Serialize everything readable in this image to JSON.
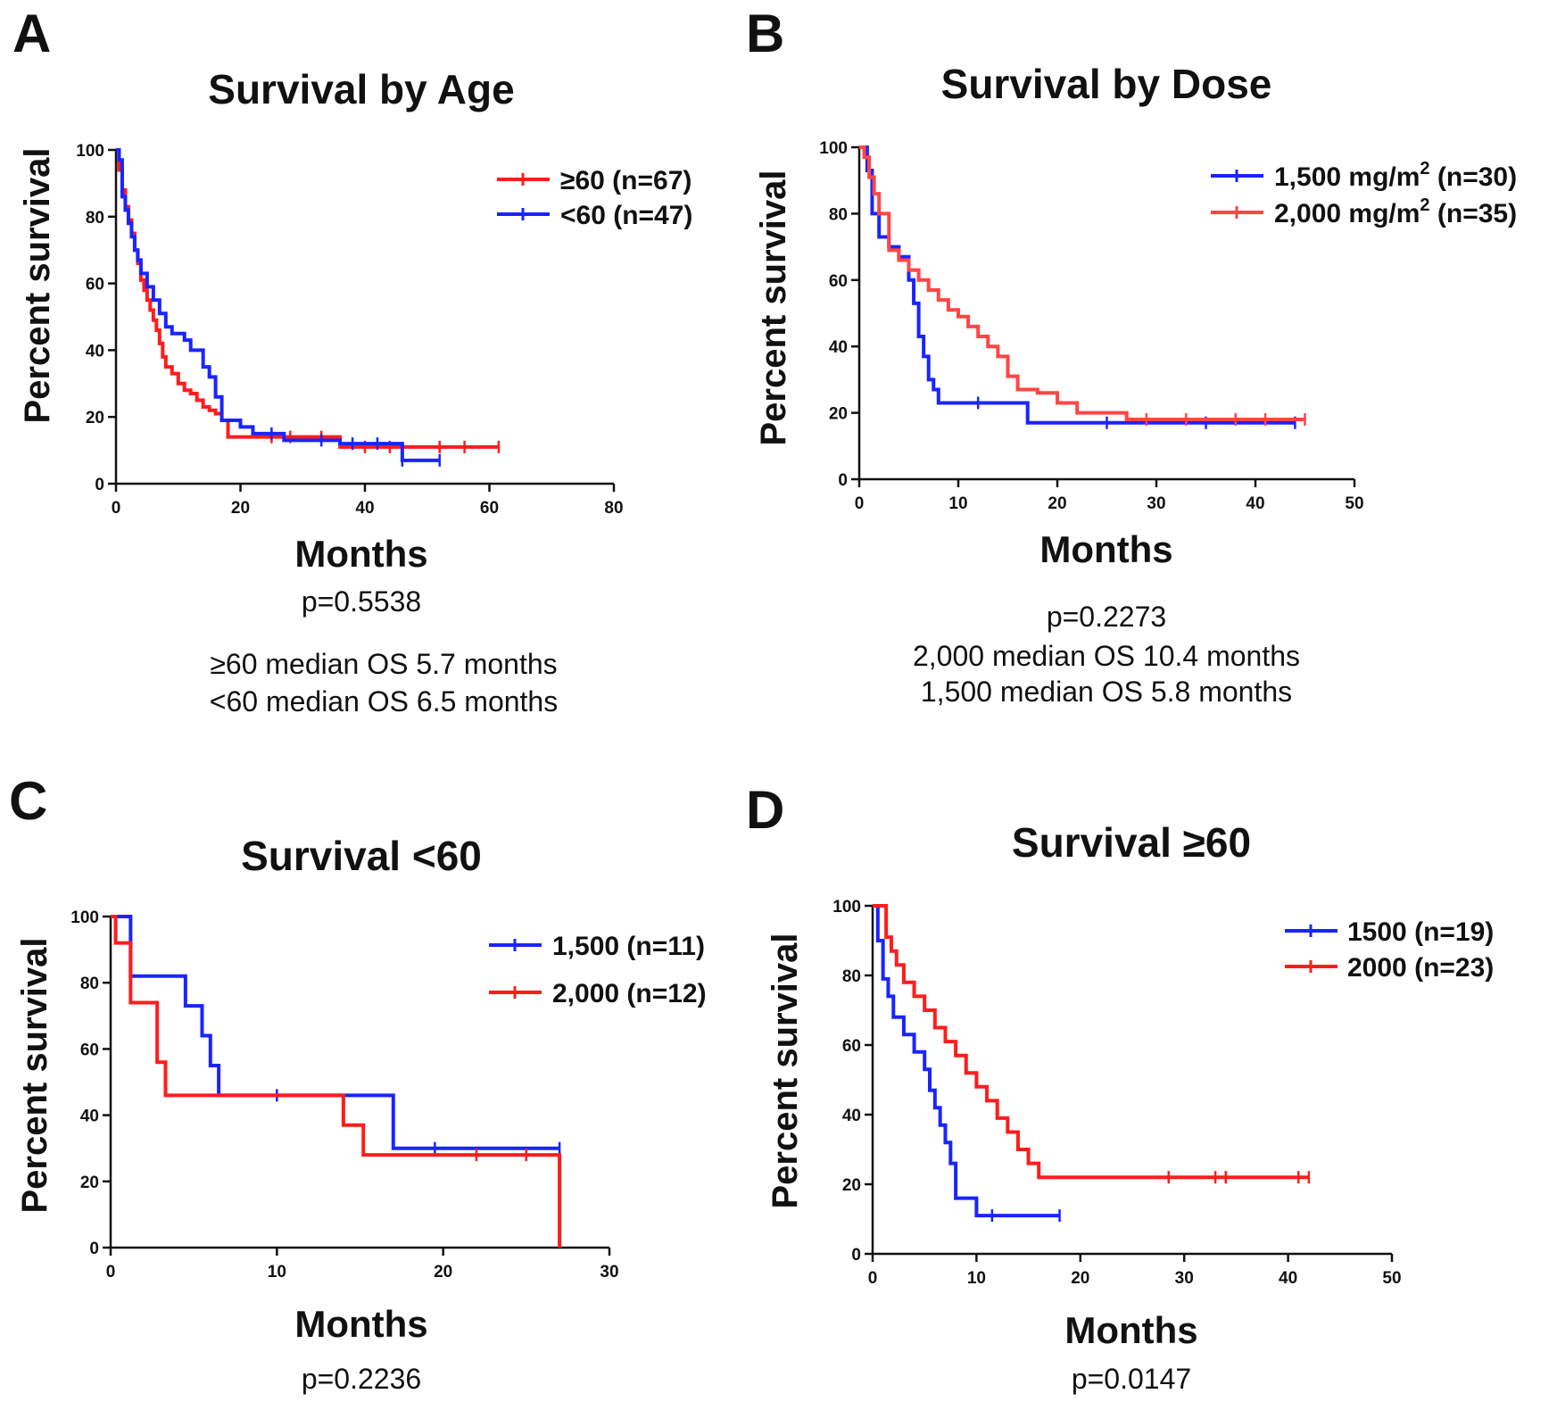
{
  "colors": {
    "red": "#ff1c1c",
    "blue": "#1a24ff",
    "light_red": "#ff4545"
  },
  "chart_data": [
    {
      "type": "line",
      "subtype": "kaplan-meier",
      "panel": "A",
      "title": "Survival by Age",
      "xlabel": "Months",
      "ylabel": "Percent survival",
      "xlim": [
        0,
        80
      ],
      "ylim": [
        0,
        100
      ],
      "xticks": [
        0,
        20,
        40,
        60,
        80
      ],
      "yticks": [
        0,
        20,
        40,
        60,
        80,
        100
      ],
      "legend_position": "top-right",
      "notes": [
        "p=0.5538",
        "≥60 median OS 5.7 months",
        "<60 median OS 6.5 months"
      ],
      "series": [
        {
          "name": "≥60 (n=67)",
          "color": "red",
          "x": [
            0,
            0.5,
            1,
            1.5,
            2,
            2.5,
            3,
            3.5,
            4,
            4.5,
            5,
            5.5,
            6,
            6.5,
            7,
            7.5,
            8,
            9,
            10,
            11,
            12,
            13,
            14,
            15,
            16,
            17,
            18,
            36,
            61.5
          ],
          "y": [
            100,
            94,
            88,
            83,
            79,
            75,
            70,
            66,
            61,
            58,
            55,
            52,
            49,
            46,
            42,
            38,
            35,
            33,
            30,
            28,
            27,
            25,
            23,
            22,
            21,
            19,
            14,
            11,
            11
          ],
          "censored_x": [
            25,
            28,
            33,
            40,
            44,
            52,
            56,
            61.5
          ]
        },
        {
          "name": "<60 (n=47)",
          "color": "blue",
          "x": [
            0,
            0.5,
            1,
            1.5,
            2,
            2.5,
            3,
            3.5,
            4,
            5,
            6,
            7,
            8,
            9,
            11,
            12,
            14,
            15,
            16,
            17,
            20,
            22,
            27,
            36,
            46,
            52
          ],
          "y": [
            100,
            97,
            86,
            82,
            78,
            74,
            70,
            67,
            63,
            59,
            55,
            51,
            47,
            45,
            43,
            40,
            35,
            32,
            26,
            19,
            17,
            15,
            13,
            12,
            7,
            7
          ],
          "censored_x": [
            25,
            33,
            38,
            42,
            46,
            52
          ]
        }
      ]
    },
    {
      "type": "line",
      "subtype": "kaplan-meier",
      "panel": "B",
      "title": "Survival by Dose",
      "xlabel": "Months",
      "ylabel": "Percent survival",
      "xlim": [
        0,
        50
      ],
      "ylim": [
        0,
        100
      ],
      "xticks": [
        0,
        10,
        20,
        30,
        40,
        50
      ],
      "yticks": [
        0,
        20,
        40,
        60,
        80,
        100
      ],
      "legend_position": "top-right",
      "notes": [
        "p=0.2273",
        "2,000 median OS 10.4 months",
        "1,500 median OS 5.8 months"
      ],
      "series": [
        {
          "name_main": "1,500 mg/m",
          "name_sup": "2",
          "name_tail": " (n=30)",
          "color": "blue",
          "x": [
            0,
            0.8,
            1.3,
            2,
            3,
            4,
            5,
            5.5,
            6,
            6.5,
            7,
            7.5,
            8,
            10,
            17,
            44
          ],
          "y": [
            100,
            93,
            80,
            73,
            70,
            67,
            60,
            53,
            43,
            37,
            30,
            27,
            23,
            23,
            17,
            17
          ],
          "censored_x": [
            12,
            25,
            35,
            44
          ]
        },
        {
          "name_main": "2,000 mg/m",
          "name_sup": "2",
          "name_tail": " (n=35)",
          "color": "light_red",
          "x": [
            0,
            0.5,
            1,
            1.5,
            2,
            3,
            4,
            5,
            6,
            7,
            8,
            9,
            10,
            11,
            12,
            13,
            14,
            15,
            16,
            18,
            20,
            22,
            27,
            45
          ],
          "y": [
            100,
            97,
            91,
            86,
            80,
            69,
            66,
            63,
            60,
            57,
            54,
            51,
            49,
            46,
            43,
            40,
            37,
            31,
            27,
            26,
            23,
            20,
            18,
            18
          ],
          "censored_x": [
            29,
            33,
            38,
            41,
            45
          ]
        }
      ]
    },
    {
      "type": "line",
      "subtype": "kaplan-meier",
      "panel": "C",
      "title": "Survival <60",
      "xlabel": "Months",
      "ylabel": "Percent survival",
      "xlim": [
        0,
        30
      ],
      "ylim": [
        0,
        100
      ],
      "xticks": [
        0,
        10,
        20,
        30
      ],
      "yticks": [
        0,
        20,
        40,
        60,
        80,
        100
      ],
      "legend_position": "top-right",
      "notes": [
        "p=0.2236"
      ],
      "series": [
        {
          "name": "1,500 (n=11)",
          "color": "blue",
          "x": [
            0,
            1.2,
            4.5,
            5.5,
            6,
            6.5,
            17,
            27
          ],
          "y": [
            100,
            82,
            73,
            64,
            55,
            46,
            30,
            30
          ],
          "censored_x": [
            10,
            19.5,
            27
          ]
        },
        {
          "name": "2,000 (n=12)",
          "color": "red",
          "x": [
            0,
            0.3,
            1.2,
            2.8,
            3.3,
            14,
            15.2,
            27,
            27
          ],
          "y": [
            100,
            92,
            74,
            56,
            46,
            37,
            28,
            28,
            0
          ],
          "censored_x": [
            22,
            25
          ]
        }
      ]
    },
    {
      "type": "line",
      "subtype": "kaplan-meier",
      "panel": "D",
      "title": "Survival ≥60",
      "xlabel": "Months",
      "ylabel": "Percent survival",
      "xlim": [
        0,
        50
      ],
      "ylim": [
        0,
        100
      ],
      "xticks": [
        0,
        10,
        20,
        30,
        40,
        50
      ],
      "yticks": [
        0,
        20,
        40,
        60,
        80,
        100
      ],
      "legend_position": "top-right",
      "notes": [
        "p=0.0147"
      ],
      "series": [
        {
          "name": "1500 (n=19)",
          "color": "blue",
          "x": [
            0,
            0.5,
            1,
            1.5,
            2,
            3,
            4,
            5,
            5.5,
            6,
            6.5,
            7,
            7.5,
            8,
            10,
            18
          ],
          "y": [
            100,
            90,
            79,
            74,
            68,
            63,
            58,
            53,
            47,
            42,
            37,
            32,
            26,
            16,
            11,
            11
          ],
          "censored_x": [
            11.5,
            18
          ]
        },
        {
          "name": "2000 (n=23)",
          "color": "red",
          "x": [
            0,
            1.3,
            1.8,
            2.3,
            3,
            4,
            5,
            6,
            7,
            8,
            9,
            10,
            11,
            12,
            13,
            14,
            15,
            16,
            17,
            18,
            42
          ],
          "y": [
            100,
            91,
            87,
            83,
            78,
            74,
            70,
            65,
            61,
            57,
            52,
            48,
            44,
            39,
            35,
            30,
            26,
            22,
            22,
            22,
            22
          ],
          "censored_x": [
            28.5,
            33,
            34,
            41,
            42
          ]
        }
      ]
    }
  ]
}
